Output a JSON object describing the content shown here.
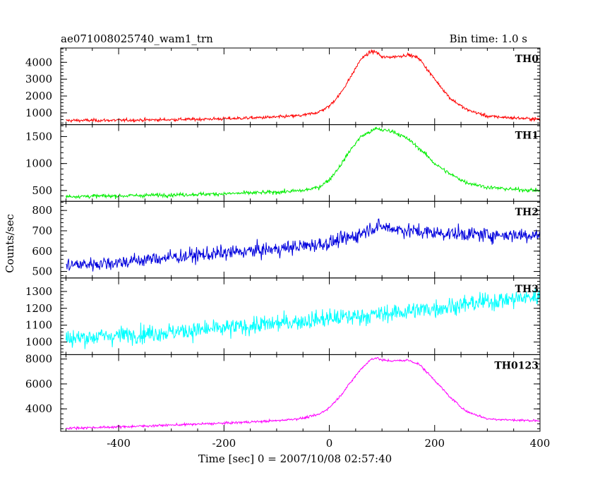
{
  "header": {
    "title": "ae071008025740_wam1_trn",
    "bin_time": "Bin time: 1.0 s"
  },
  "chart_data": {
    "type": "line",
    "xlabel": "Time [sec] 0 = 2007/10/08 02:57:40",
    "ylabel": "Counts/sec",
    "xlim": [
      -510,
      400
    ],
    "xticks": [
      -400,
      -200,
      0,
      200,
      400
    ],
    "panels": [
      {
        "name": "TH0",
        "color": "#ff0000",
        "ylim": [
          300,
          4850
        ],
        "yticks": [
          1000,
          2000,
          3000,
          4000
        ],
        "x": [
          -500,
          -400,
          -300,
          -200,
          -100,
          -50,
          -20,
          0,
          20,
          40,
          60,
          80,
          90,
          100,
          110,
          130,
          150,
          170,
          200,
          230,
          260,
          300,
          350,
          400
        ],
        "y": [
          550,
          560,
          600,
          650,
          750,
          850,
          1050,
          1400,
          2100,
          3100,
          4200,
          4650,
          4600,
          4300,
          4300,
          4350,
          4450,
          4250,
          3000,
          1850,
          1200,
          800,
          700,
          620
        ],
        "noise": 80
      },
      {
        "name": "TH1",
        "color": "#00ee00",
        "ylim": [
          300,
          1720
        ],
        "yticks": [
          500,
          1000,
          1500
        ],
        "x": [
          -500,
          -400,
          -300,
          -200,
          -100,
          -50,
          -20,
          0,
          20,
          40,
          60,
          80,
          90,
          100,
          120,
          150,
          180,
          200,
          230,
          260,
          300,
          350,
          400
        ],
        "y": [
          390,
          400,
          420,
          440,
          470,
          500,
          560,
          700,
          950,
          1250,
          1500,
          1600,
          1650,
          1620,
          1600,
          1450,
          1200,
          1000,
          800,
          650,
          560,
          520,
          500
        ],
        "noise": 30
      },
      {
        "name": "TH2",
        "color": "#0000dd",
        "ylim": [
          468,
          845
        ],
        "yticks": [
          500,
          600,
          700,
          800
        ],
        "x": [
          -500,
          -400,
          -300,
          -200,
          -100,
          0,
          50,
          80,
          100,
          150,
          200,
          300,
          400
        ],
        "y": [
          530,
          545,
          570,
          590,
          610,
          640,
          675,
          715,
          720,
          700,
          690,
          680,
          680
        ],
        "noise": 30
      },
      {
        "name": "TH3",
        "color": "#00ffff",
        "ylim": [
          925,
          1380
        ],
        "yticks": [
          1000,
          1100,
          1200,
          1300
        ],
        "x": [
          -500,
          -400,
          -300,
          -200,
          -100,
          0,
          100,
          200,
          300,
          400
        ],
        "y": [
          1020,
          1040,
          1060,
          1080,
          1110,
          1140,
          1165,
          1200,
          1240,
          1270
        ],
        "noise": 45
      },
      {
        "name": "TH0123",
        "color": "#ff00ff",
        "ylim": [
          2200,
          8350
        ],
        "yticks": [
          4000,
          6000,
          8000
        ],
        "x": [
          -500,
          -400,
          -300,
          -200,
          -100,
          -50,
          -20,
          0,
          20,
          40,
          60,
          80,
          90,
          100,
          120,
          150,
          170,
          200,
          230,
          260,
          300,
          350,
          400
        ],
        "y": [
          2450,
          2550,
          2700,
          2850,
          3050,
          3250,
          3550,
          4100,
          5000,
          6100,
          7200,
          8000,
          8100,
          7900,
          7850,
          7900,
          7600,
          6300,
          4900,
          3800,
          3200,
          3100,
          3050
        ],
        "noise": 80
      }
    ]
  }
}
